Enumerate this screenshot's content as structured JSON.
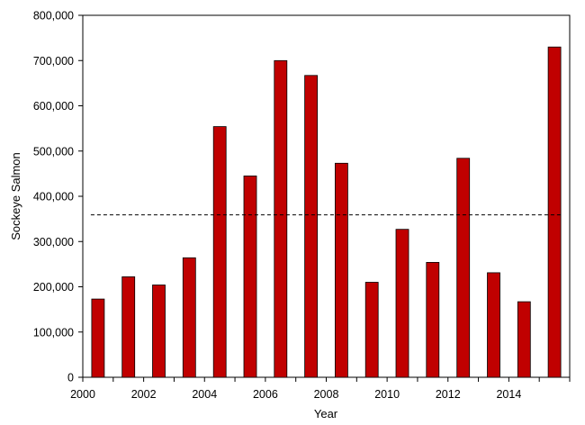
{
  "chart_data": {
    "type": "bar",
    "xlabel": "Year",
    "ylabel": "Sockeye Salmon",
    "categories": [
      2000,
      2001,
      2002,
      2003,
      2004,
      2005,
      2006,
      2007,
      2008,
      2009,
      2010,
      2011,
      2012,
      2013,
      2014,
      2015
    ],
    "values": [
      173000,
      222000,
      204000,
      264000,
      554000,
      445000,
      700000,
      667000,
      473000,
      210000,
      327000,
      254000,
      484000,
      231000,
      167000,
      730000
    ],
    "ylim": [
      0,
      800000
    ],
    "yticks": [
      0,
      100000,
      200000,
      300000,
      400000,
      500000,
      600000,
      700000,
      800000
    ],
    "ytick_labels": [
      "0",
      "100,000",
      "200,000",
      "300,000",
      "400,000",
      "500,000",
      "600,000",
      "700,000",
      "800,000"
    ],
    "xtick_labels": [
      "2000",
      "2002",
      "2004",
      "2006",
      "2008",
      "2010",
      "2012",
      "2014"
    ],
    "reference_line": {
      "value": 359000,
      "style": "dashed"
    },
    "bar_color": "#c00000",
    "grid": false,
    "legend": "none"
  }
}
